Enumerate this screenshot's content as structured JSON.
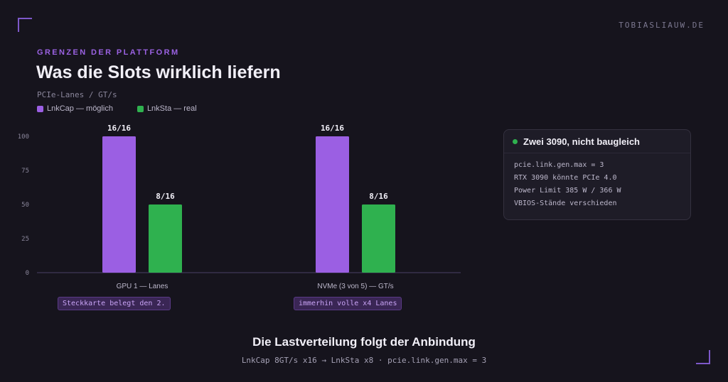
{
  "site": "TOBIASLIAUW.DE",
  "eyebrow": "GRENZEN DER PLATTFORM",
  "colors": {
    "accent": "#9b62e3",
    "lnkcap": "#9b5fe3",
    "lnksta": "#2fb14f",
    "background": "#16141d"
  },
  "chart_data": {
    "type": "bar",
    "title": "Was die Slots wirklich liefern",
    "subtitle": "PCIe-Lanes / GT/s",
    "categories": [
      "GPU 1 — Lanes",
      "NVMe (3 von 5) — GT/s"
    ],
    "series": [
      {
        "name": "LnkCap — möglich",
        "color": "#9b5fe3",
        "values": [
          100,
          100
        ],
        "labels": [
          "16/16",
          "16/16"
        ]
      },
      {
        "name": "LnkSta — real",
        "color": "#2fb14f",
        "values": [
          50,
          50
        ],
        "labels": [
          "8/16",
          "8/16"
        ]
      }
    ],
    "ylim": [
      0,
      100
    ],
    "yticks": [
      0,
      25,
      50,
      75,
      100
    ],
    "grid": false,
    "legend_position": "top-left",
    "annotations": [
      "Steckkarte belegt den 2.",
      "immerhin volle x4 Lanes"
    ]
  },
  "card": {
    "title": "Zwei 3090, nicht baugleich",
    "lines": [
      "pcie.link.gen.max = 3",
      "RTX 3090 könnte PCIe 4.0",
      "Power Limit 385 W / 366 W",
      "VBIOS-Stände verschieden"
    ]
  },
  "footer": {
    "title": "Die Lastverteilung folgt der Anbindung",
    "subtitle": "LnkCap 8GT/s x16 → LnkSta x8 · pcie.link.gen.max = 3"
  }
}
